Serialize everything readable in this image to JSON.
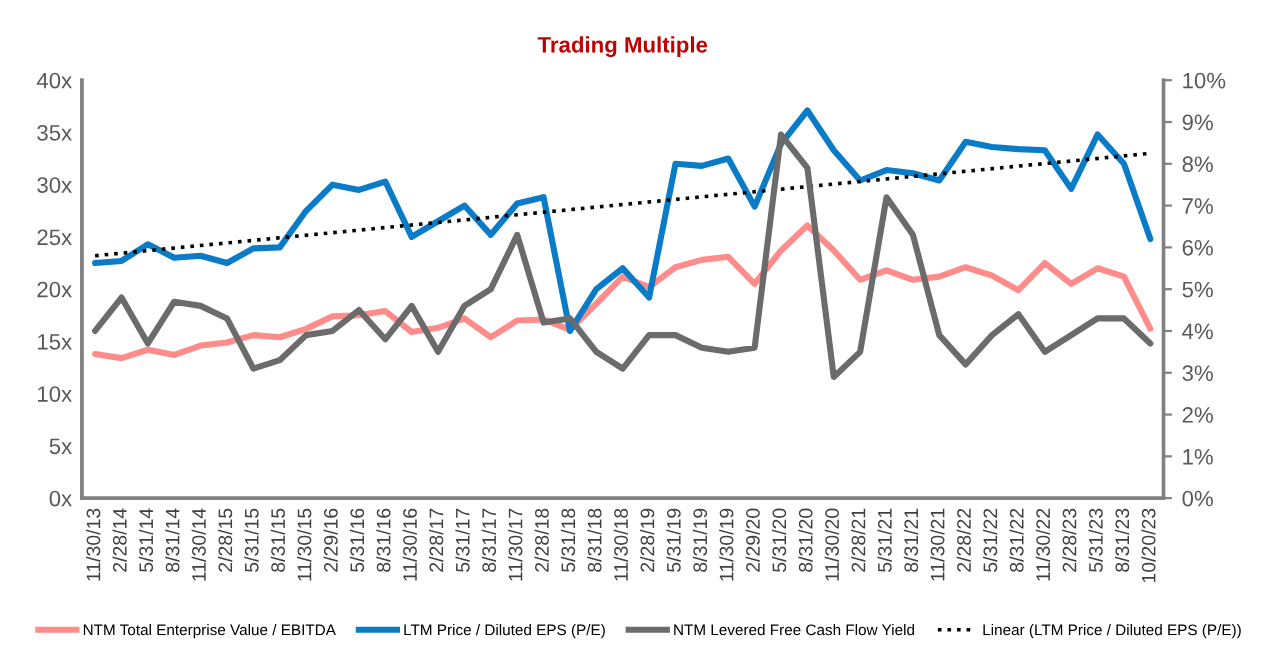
{
  "chart_data": {
    "type": "line",
    "title": "Trading Multiple",
    "categories": [
      "11/30/13",
      "2/28/14",
      "5/31/14",
      "8/31/14",
      "11/30/14",
      "2/28/15",
      "5/31/15",
      "8/31/15",
      "11/30/15",
      "2/29/16",
      "5/31/16",
      "8/31/16",
      "11/30/16",
      "2/28/17",
      "5/31/17",
      "8/31/17",
      "11/30/17",
      "2/28/18",
      "5/31/18",
      "8/31/18",
      "11/30/18",
      "2/28/19",
      "5/31/19",
      "8/31/19",
      "11/30/19",
      "2/29/20",
      "5/31/20",
      "8/31/20",
      "11/30/20",
      "2/28/21",
      "5/31/21",
      "8/31/21",
      "11/30/21",
      "2/28/22",
      "5/31/22",
      "8/31/22",
      "11/30/22",
      "2/28/23",
      "5/31/23",
      "8/31/23",
      "10/20/23"
    ],
    "series": [
      {
        "name": "NTM Total Enterprise Value / EBITDA",
        "color": "#ff8b8b",
        "line_style": "solid",
        "values": [
          13.8,
          13.4,
          14.2,
          13.7,
          14.6,
          14.9,
          15.6,
          15.4,
          16.2,
          17.4,
          17.5,
          17.9,
          15.9,
          16.3,
          17.2,
          15.4,
          17.0,
          17.1,
          16.1,
          18.6,
          21.2,
          20.2,
          22.1,
          22.8,
          23.1,
          20.5,
          23.7,
          26.1,
          23.7,
          20.9,
          21.8,
          20.9,
          21.2,
          22.1,
          21.3,
          19.9,
          22.5,
          20.5,
          22.0,
          21.2,
          16.2
        ]
      },
      {
        "name": "LTM Price / Diluted EPS (P/E)",
        "color": "#0a7cc7",
        "line_style": "solid",
        "values": [
          22.5,
          22.7,
          24.3,
          23.0,
          23.2,
          22.5,
          23.9,
          24.0,
          27.5,
          30.0,
          29.5,
          30.3,
          25.0,
          26.5,
          28.0,
          25.2,
          28.2,
          28.8,
          16.0,
          20.0,
          22.0,
          19.2,
          32.0,
          31.8,
          32.5,
          27.9,
          33.9,
          37.1,
          33.3,
          30.4,
          31.4,
          31.1,
          30.4,
          34.1,
          33.6,
          33.4,
          33.3,
          29.6,
          34.8,
          32.0,
          24.8
        ]
      },
      {
        "name": "NTM Levered Free Cash Flow Yield",
        "color": "#6b6b6b",
        "line_style": "solid",
        "axis": "y2",
        "values": [
          4.0,
          4.8,
          3.7,
          4.7,
          4.6,
          4.3,
          3.1,
          3.3,
          3.9,
          4.0,
          4.5,
          3.8,
          4.6,
          3.5,
          4.6,
          5.0,
          6.3,
          4.2,
          4.3,
          3.5,
          3.1,
          3.9,
          3.9,
          3.6,
          3.5,
          3.6,
          8.7,
          7.9,
          2.9,
          3.5,
          7.2,
          6.3,
          3.9,
          3.2,
          3.9,
          4.4,
          3.5,
          3.9,
          4.3,
          4.3,
          3.7
        ]
      },
      {
        "name": "Linear (LTM Price / Diluted EPS (P/E))",
        "color": "#000000",
        "line_style": "dotted",
        "values": [
          23.2,
          null,
          null,
          null,
          null,
          null,
          null,
          null,
          null,
          null,
          null,
          null,
          null,
          null,
          null,
          null,
          null,
          null,
          null,
          null,
          null,
          null,
          null,
          null,
          null,
          null,
          null,
          null,
          null,
          null,
          null,
          null,
          null,
          null,
          null,
          null,
          null,
          null,
          null,
          null,
          33.0
        ]
      }
    ],
    "ylim": [
      0,
      40
    ],
    "yticks": [
      {
        "value": 0,
        "label": "0x"
      },
      {
        "value": 5,
        "label": "5x"
      },
      {
        "value": 10,
        "label": "10x"
      },
      {
        "value": 15,
        "label": "15x"
      },
      {
        "value": 20,
        "label": "20x"
      },
      {
        "value": 25,
        "label": "25x"
      },
      {
        "value": 30,
        "label": "30x"
      },
      {
        "value": 35,
        "label": "35x"
      },
      {
        "value": 40,
        "label": "40x"
      }
    ],
    "y2lim": [
      0,
      10
    ],
    "y2ticks": [
      {
        "value": 0,
        "label": "0%"
      },
      {
        "value": 1,
        "label": "1%"
      },
      {
        "value": 2,
        "label": "2%"
      },
      {
        "value": 3,
        "label": "3%"
      },
      {
        "value": 4,
        "label": "4%"
      },
      {
        "value": 5,
        "label": "5%"
      },
      {
        "value": 6,
        "label": "6%"
      },
      {
        "value": 7,
        "label": "7%"
      },
      {
        "value": 8,
        "label": "8%"
      },
      {
        "value": 9,
        "label": "9%"
      },
      {
        "value": 10,
        "label": "10%"
      }
    ],
    "grid": false,
    "legend": "bottom"
  }
}
